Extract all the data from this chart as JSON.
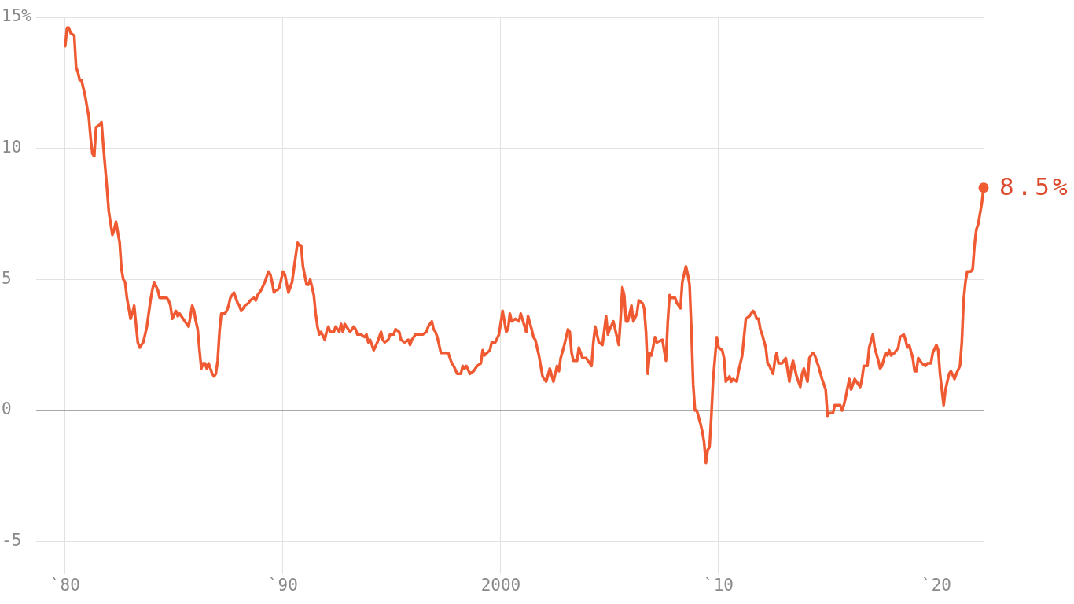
{
  "chart_data": {
    "type": "line",
    "x": [
      "1980-01",
      "1980-02",
      "1980-03",
      "1980-04",
      "1980-06",
      "1980-07",
      "1980-08",
      "1980-09",
      "1980-10",
      "1980-12",
      "1981-01",
      "1981-02",
      "1981-03",
      "1981-04",
      "1981-05",
      "1981-06",
      "1981-08",
      "1981-09",
      "1981-10",
      "1981-11",
      "1981-12",
      "1982-01",
      "1982-03",
      "1982-04",
      "1982-05",
      "1982-07",
      "1982-08",
      "1982-09",
      "1982-10",
      "1982-11",
      "1982-12",
      "1983-01",
      "1983-02",
      "1983-03",
      "1983-04",
      "1983-05",
      "1983-06",
      "1983-08",
      "1983-09",
      "1983-10",
      "1983-12",
      "1984-01",
      "1984-02",
      "1984-04",
      "1984-05",
      "1984-09",
      "1984-10",
      "1984-11",
      "1984-12",
      "1985-02",
      "1985-03",
      "1985-04",
      "1985-05",
      "1985-07",
      "1985-09",
      "1985-10",
      "1985-11",
      "1985-12",
      "1986-01",
      "1986-02",
      "1986-03",
      "1986-04",
      "1986-05",
      "1986-06",
      "1986-07",
      "1986-08",
      "1986-09",
      "1986-10",
      "1986-11",
      "1986-12",
      "1987-01",
      "1987-02",
      "1987-03",
      "1987-05",
      "1987-06",
      "1987-07",
      "1987-08",
      "1987-09",
      "1987-10",
      "1987-11",
      "1987-12",
      "1988-01",
      "1988-02",
      "1988-03",
      "1988-04",
      "1988-06",
      "1988-07",
      "1988-09",
      "1988-10",
      "1988-11",
      "1988-12",
      "1989-01",
      "1989-03",
      "1989-04",
      "1989-05",
      "1989-06",
      "1989-07",
      "1989-08",
      "1989-09",
      "1989-10",
      "1989-11",
      "1989-12",
      "1990-01",
      "1990-02",
      "1990-04",
      "1990-06",
      "1990-07",
      "1990-09",
      "1990-10",
      "1990-11",
      "1990-12",
      "1991-02",
      "1991-03",
      "1991-04",
      "1991-05",
      "1991-06",
      "1991-07",
      "1991-08",
      "1991-09",
      "1991-10",
      "1991-12",
      "1992-01",
      "1992-02",
      "1992-03",
      "1992-05",
      "1992-06",
      "1992-08",
      "1992-09",
      "1992-10",
      "1992-11",
      "1993-01",
      "1993-02",
      "1993-04",
      "1993-05",
      "1993-06",
      "1993-08",
      "1993-10",
      "1993-11",
      "1993-12",
      "1994-01",
      "1994-02",
      "1994-03",
      "1994-05",
      "1994-06",
      "1994-07",
      "1994-08",
      "1994-09",
      "1994-11",
      "1994-12",
      "1995-02",
      "1995-03",
      "1995-05",
      "1995-06",
      "1995-08",
      "1995-10",
      "1995-11",
      "1995-12",
      "1996-01",
      "1996-02",
      "1996-06",
      "1996-08",
      "1996-09",
      "1996-11",
      "1996-12",
      "1997-01",
      "1997-02",
      "1997-03",
      "1997-04",
      "1997-08",
      "1997-10",
      "1997-11",
      "1998-01",
      "1998-03",
      "1998-04",
      "1998-05",
      "1998-06",
      "1998-08",
      "1998-10",
      "1998-12",
      "1999-02",
      "1999-03",
      "1999-04",
      "1999-07",
      "1999-08",
      "1999-10",
      "1999-12",
      "2000-02",
      "2000-04",
      "2000-05",
      "2000-06",
      "2000-07",
      "2000-09",
      "2000-11",
      "2000-12",
      "2001-03",
      "2001-04",
      "2001-06",
      "2001-07",
      "2001-08",
      "2001-10",
      "2001-12",
      "2002-02",
      "2002-04",
      "2002-06",
      "2002-08",
      "2002-09",
      "2002-10",
      "2002-12",
      "2003-02",
      "2003-03",
      "2003-04",
      "2003-05",
      "2003-07",
      "2003-08",
      "2003-10",
      "2003-12",
      "2004-01",
      "2004-03",
      "2004-04",
      "2004-05",
      "2004-07",
      "2004-09",
      "2004-11",
      "2004-12",
      "2005-01",
      "2005-03",
      "2005-04",
      "2005-06",
      "2005-07",
      "2005-08",
      "2005-09",
      "2005-10",
      "2005-11",
      "2006-01",
      "2006-02",
      "2006-04",
      "2006-05",
      "2006-07",
      "2006-08",
      "2006-09",
      "2006-10",
      "2006-11",
      "2006-12",
      "2007-02",
      "2007-03",
      "2007-06",
      "2007-08",
      "2007-09",
      "2007-10",
      "2007-11",
      "2008-01",
      "2008-02",
      "2008-04",
      "2008-05",
      "2008-07",
      "2008-08",
      "2008-09",
      "2008-10",
      "2008-11",
      "2008-12",
      "2009-01",
      "2009-03",
      "2009-04",
      "2009-05",
      "2009-06",
      "2009-07",
      "2009-08",
      "2009-09",
      "2009-10",
      "2009-11",
      "2009-12",
      "2010-01",
      "2010-03",
      "2010-04",
      "2010-05",
      "2010-06",
      "2010-07",
      "2010-08",
      "2010-09",
      "2010-11",
      "2010-12",
      "2011-01",
      "2011-02",
      "2011-04",
      "2011-06",
      "2011-08",
      "2011-09",
      "2011-10",
      "2011-11",
      "2011-12",
      "2012-01",
      "2012-03",
      "2012-04",
      "2012-05",
      "2012-07",
      "2012-08",
      "2012-09",
      "2012-10",
      "2012-12",
      "2013-02",
      "2013-04",
      "2013-05",
      "2013-06",
      "2013-08",
      "2013-09",
      "2013-10",
      "2013-11",
      "2013-12",
      "2014-02",
      "2014-03",
      "2014-05",
      "2014-06",
      "2014-08",
      "2014-10",
      "2014-12",
      "2015-01",
      "2015-02",
      "2015-04",
      "2015-05",
      "2015-07",
      "2015-08",
      "2015-09",
      "2015-10",
      "2015-11",
      "2016-01",
      "2016-02",
      "2016-03",
      "2016-04",
      "2016-06",
      "2016-07",
      "2016-08",
      "2016-09",
      "2016-11",
      "2016-12",
      "2017-02",
      "2017-03",
      "2017-05",
      "2017-06",
      "2017-07",
      "2017-09",
      "2017-10",
      "2017-11",
      "2017-12",
      "2018-02",
      "2018-04",
      "2018-05",
      "2018-07",
      "2018-08",
      "2018-09",
      "2018-10",
      "2018-12",
      "2019-01",
      "2019-02",
      "2019-03",
      "2019-05",
      "2019-07",
      "2019-08",
      "2019-10",
      "2019-11",
      "2020-01",
      "2020-02",
      "2020-03",
      "2020-04",
      "2020-05",
      "2020-06",
      "2020-07",
      "2020-08",
      "2020-09",
      "2020-11",
      "2020-12",
      "2021-02",
      "2021-03",
      "2021-04",
      "2021-05",
      "2021-06",
      "2021-08",
      "2021-09",
      "2021-10",
      "2021-11",
      "2021-12",
      "2022-01",
      "2022-02",
      "2022-03"
    ],
    "values": [
      13.9,
      14.6,
      14.6,
      14.4,
      14.3,
      13.1,
      12.9,
      12.6,
      12.6,
      12.0,
      11.6,
      11.2,
      10.4,
      9.8,
      9.7,
      10.8,
      10.9,
      11.0,
      10.1,
      9.3,
      8.5,
      7.6,
      6.7,
      6.9,
      7.2,
      6.4,
      5.4,
      5.0,
      4.9,
      4.3,
      3.9,
      3.5,
      3.7,
      4.0,
      3.3,
      2.6,
      2.4,
      2.6,
      2.9,
      3.2,
      4.2,
      4.6,
      4.9,
      4.6,
      4.3,
      4.3,
      4.2,
      4.0,
      3.5,
      3.8,
      3.6,
      3.7,
      3.6,
      3.4,
      3.2,
      3.6,
      4.0,
      3.8,
      3.4,
      3.1,
      2.3,
      1.6,
      1.8,
      1.8,
      1.6,
      1.8,
      1.6,
      1.4,
      1.3,
      1.4,
      1.9,
      3.0,
      3.7,
      3.7,
      3.8,
      4.0,
      4.3,
      4.4,
      4.5,
      4.3,
      4.1,
      4.0,
      3.8,
      3.9,
      4.0,
      4.1,
      4.2,
      4.3,
      4.2,
      4.4,
      4.5,
      4.6,
      4.9,
      5.1,
      5.3,
      5.2,
      4.9,
      4.5,
      4.6,
      4.6,
      4.7,
      5.0,
      5.3,
      5.2,
      4.5,
      4.9,
      5.4,
      6.4,
      6.3,
      6.3,
      5.5,
      4.8,
      4.8,
      5.0,
      4.7,
      4.4,
      3.7,
      3.2,
      2.9,
      3.0,
      2.7,
      3.0,
      3.2,
      3.0,
      3.0,
      3.2,
      3.0,
      3.3,
      3.0,
      3.3,
      3.1,
      3.0,
      3.2,
      3.1,
      2.9,
      2.9,
      2.8,
      2.9,
      2.6,
      2.7,
      2.5,
      2.3,
      2.6,
      2.8,
      3.0,
      2.7,
      2.6,
      2.7,
      2.9,
      2.9,
      3.1,
      3.0,
      2.7,
      2.6,
      2.7,
      2.5,
      2.7,
      2.8,
      2.9,
      2.9,
      3.0,
      3.2,
      3.4,
      3.1,
      3.0,
      2.8,
      2.5,
      2.2,
      2.2,
      1.8,
      1.7,
      1.4,
      1.4,
      1.7,
      1.6,
      1.7,
      1.4,
      1.5,
      1.7,
      1.8,
      2.3,
      2.1,
      2.3,
      2.6,
      2.6,
      2.9,
      3.8,
      3.0,
      3.1,
      3.7,
      3.4,
      3.5,
      3.4,
      3.7,
      3.0,
      3.6,
      3.1,
      2.8,
      2.7,
      2.1,
      1.3,
      1.1,
      1.6,
      1.1,
      1.7,
      1.5,
      2.0,
      2.5,
      3.1,
      3.0,
      2.2,
      1.9,
      1.9,
      2.4,
      2.0,
      2.0,
      1.9,
      1.7,
      2.6,
      3.2,
      2.6,
      2.5,
      3.6,
      2.9,
      3.1,
      3.4,
      3.1,
      2.5,
      3.5,
      4.7,
      4.4,
      3.4,
      3.4,
      4.0,
      3.4,
      3.7,
      4.2,
      4.1,
      3.9,
      3.0,
      1.4,
      2.2,
      2.1,
      2.8,
      2.6,
      2.7,
      1.9,
      3.4,
      4.4,
      4.3,
      4.3,
      4.1,
      3.9,
      4.9,
      5.5,
      5.2,
      4.8,
      3.1,
      1.0,
      0.0,
      0.0,
      -0.5,
      -0.8,
      -1.2,
      -2.0,
      -1.5,
      -1.4,
      -0.2,
      1.2,
      2.0,
      2.8,
      2.4,
      2.3,
      2.0,
      1.1,
      1.2,
      1.3,
      1.1,
      1.2,
      1.1,
      1.5,
      1.8,
      2.1,
      3.5,
      3.6,
      3.8,
      3.7,
      3.5,
      3.5,
      3.1,
      2.9,
      2.4,
      1.8,
      1.7,
      1.4,
      1.9,
      2.2,
      1.8,
      1.8,
      2.0,
      1.1,
      1.6,
      1.9,
      1.3,
      1.1,
      0.9,
      1.4,
      1.6,
      1.1,
      2.0,
      2.2,
      2.1,
      1.7,
      1.2,
      0.8,
      -0.2,
      -0.1,
      -0.1,
      0.2,
      0.2,
      0.2,
      0.0,
      0.2,
      0.5,
      1.2,
      0.8,
      1.0,
      1.2,
      1.0,
      0.9,
      1.2,
      1.7,
      1.7,
      2.4,
      2.9,
      2.4,
      1.9,
      1.6,
      1.7,
      2.2,
      2.1,
      2.3,
      2.1,
      2.2,
      2.4,
      2.8,
      2.9,
      2.7,
      2.4,
      2.5,
      2.0,
      1.5,
      1.5,
      2.0,
      1.8,
      1.7,
      1.8,
      1.8,
      2.2,
      2.5,
      2.3,
      1.4,
      0.8,
      0.2,
      0.8,
      1.1,
      1.4,
      1.5,
      1.2,
      1.4,
      1.7,
      2.6,
      4.2,
      4.9,
      5.3,
      5.3,
      5.4,
      6.3,
      6.9,
      7.1,
      7.5,
      7.9,
      8.5
    ],
    "color": "#ef5a32",
    "xlim": [
      "1978-09",
      "2022-03"
    ],
    "xticks": [
      {
        "value": "1980",
        "label": "`80"
      },
      {
        "value": "1990",
        "label": "`90"
      },
      "2000",
      {
        "value": "2010",
        "label": "`10"
      },
      {
        "value": "2020",
        "label": "`20"
      }
    ],
    "ylim": [
      -6,
      15
    ],
    "yticks": [
      -5,
      0,
      5,
      10,
      {
        "value": 15,
        "label": "15%"
      }
    ],
    "grid": true,
    "marker": "none",
    "ref_lines": [
      {
        "axis": "y",
        "value": 0,
        "color": "#8c8c8c"
      }
    ],
    "annotations": [
      {
        "text": "8.5%",
        "x": "2022-03",
        "y": 8.5
      }
    ]
  }
}
